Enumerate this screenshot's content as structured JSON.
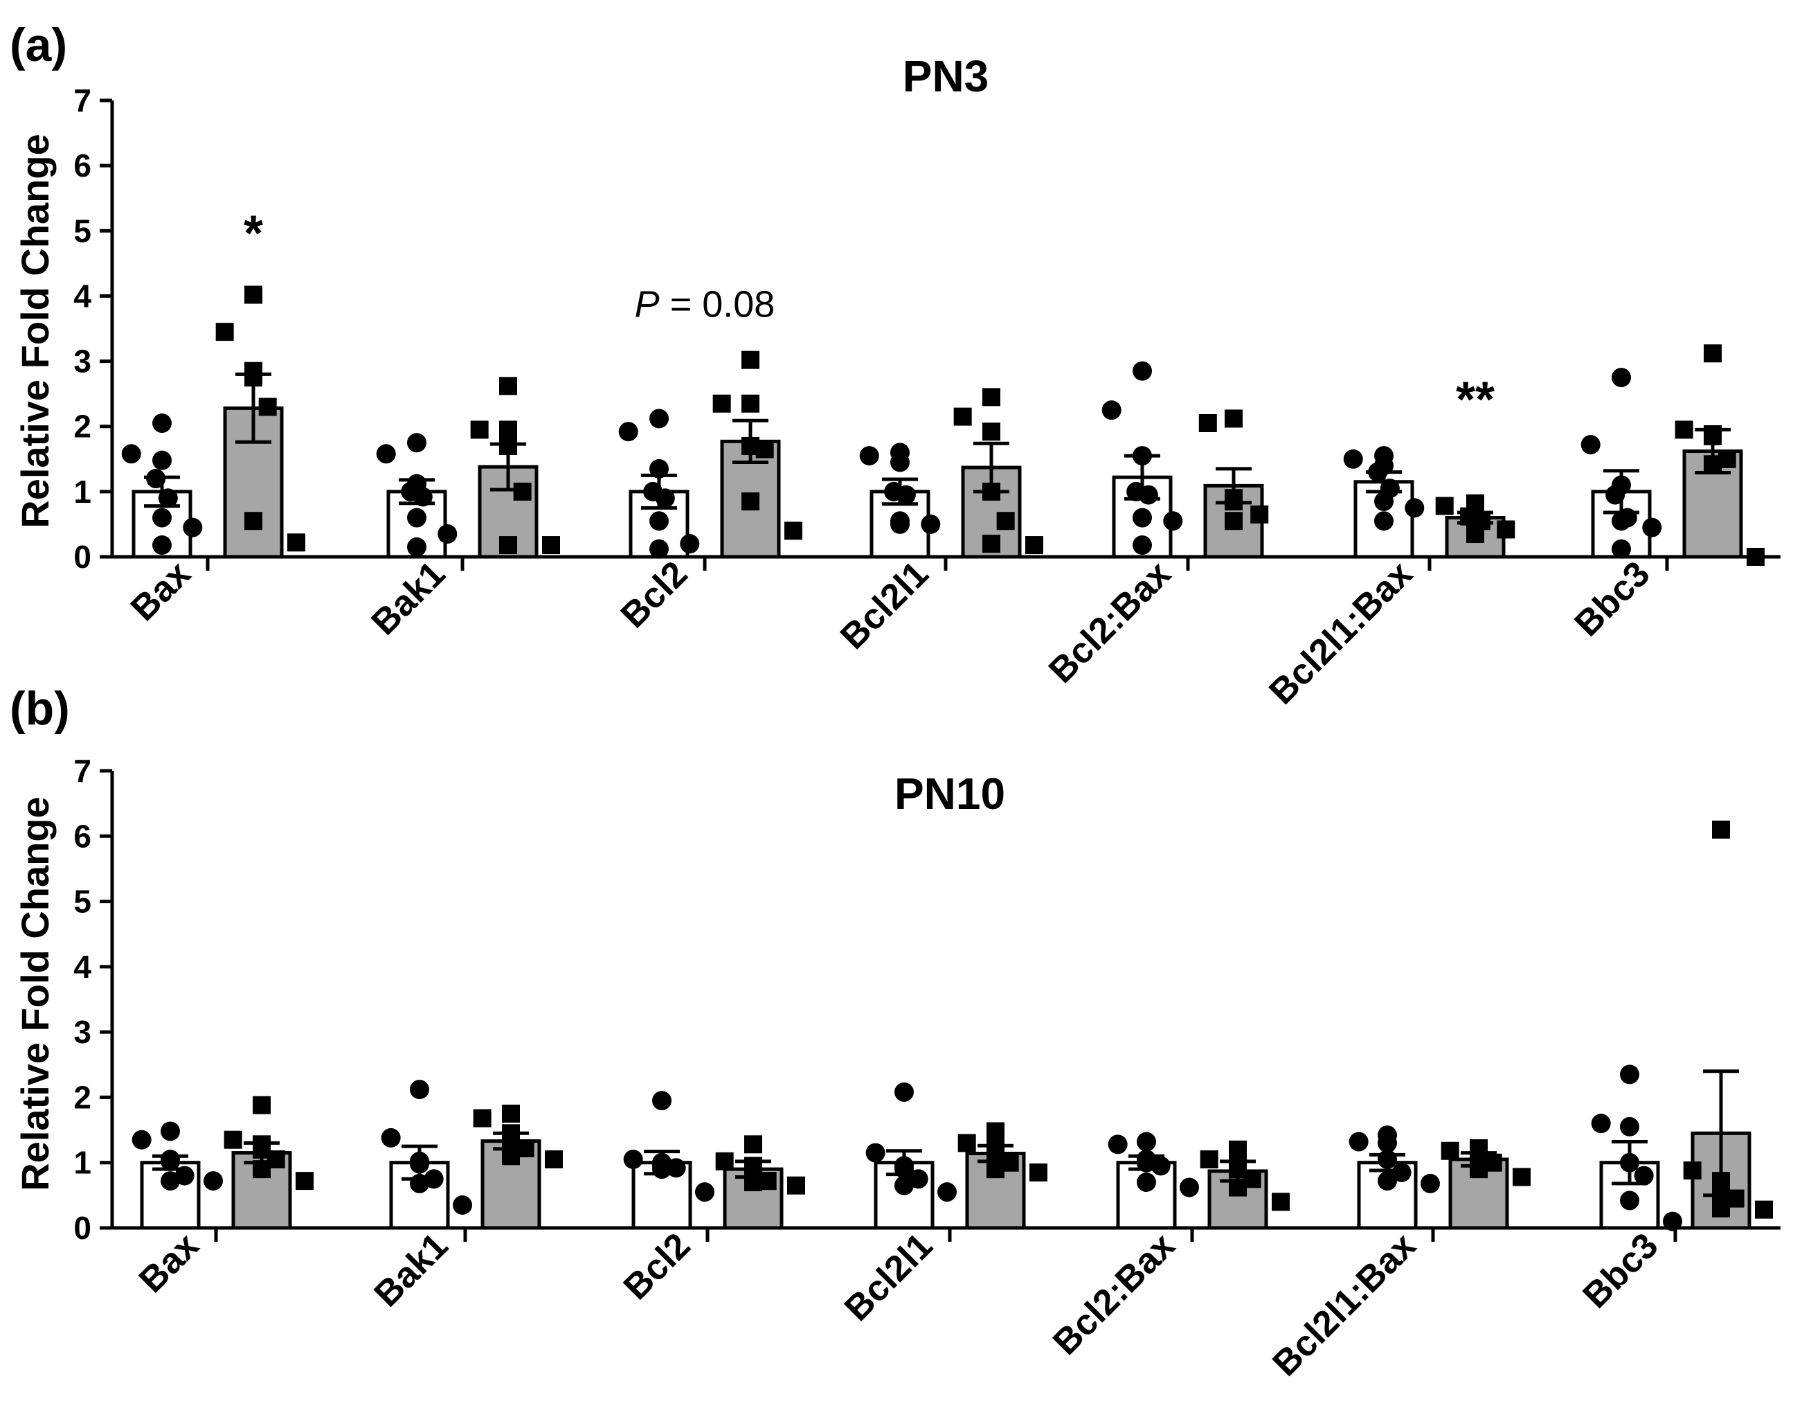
{
  "chart_data": [
    {
      "type": "bar",
      "panel": "(a)",
      "title": "PN3",
      "ylabel": "Relative Fold Change",
      "xlabel": "",
      "ylim": [
        0,
        7
      ],
      "yticks": [
        0,
        1,
        2,
        3,
        4,
        5,
        6,
        7
      ],
      "categories": [
        "Bax",
        "Bak1",
        "Bcl2",
        "Bcl2l1",
        "Bcl2:Bax",
        "Bcl2l1:Bax",
        "Bbc3"
      ],
      "series": [
        {
          "fill": "#ffffff",
          "marker": "circle",
          "values": [
            1.0,
            1.0,
            1.0,
            1.0,
            1.22,
            1.15,
            1.0
          ],
          "sem": [
            0.22,
            0.18,
            0.25,
            0.19,
            0.33,
            0.15,
            0.32
          ],
          "points": [
            [
              2.05,
              1.58,
              1.48,
              1.2,
              0.9,
              0.6,
              0.45,
              0.18
            ],
            [
              1.75,
              1.58,
              1.12,
              1.0,
              0.92,
              0.6,
              0.35,
              0.15
            ],
            [
              2.12,
              1.92,
              1.35,
              1.0,
              0.9,
              0.55,
              0.2,
              0.12
            ],
            [
              1.6,
              1.55,
              1.45,
              1.0,
              0.95,
              0.55,
              0.5,
              0.5
            ],
            [
              2.85,
              2.25,
              1.55,
              1.0,
              0.95,
              0.6,
              0.55,
              0.18
            ],
            [
              1.55,
              1.5,
              1.4,
              1.3,
              1.05,
              0.85,
              0.75,
              0.55
            ],
            [
              2.75,
              1.72,
              1.1,
              0.95,
              0.6,
              0.55,
              0.45,
              0.12
            ]
          ]
        },
        {
          "fill": "#a6a6a6",
          "marker": "square",
          "values": [
            2.28,
            1.38,
            1.77,
            1.37,
            1.09,
            0.6,
            1.62
          ],
          "sem": [
            0.52,
            0.35,
            0.32,
            0.37,
            0.26,
            0.08,
            0.33
          ],
          "points": [
            [
              4.02,
              3.45,
              2.85,
              2.75,
              2.3,
              0.55,
              0.22
            ],
            [
              2.62,
              1.95,
              1.95,
              1.7,
              1.0,
              0.18,
              0.18
            ],
            [
              3.02,
              2.35,
              2.35,
              1.7,
              1.65,
              0.85,
              0.4
            ],
            [
              2.45,
              2.15,
              1.92,
              1.0,
              0.55,
              0.2,
              0.18
            ],
            [
              2.12,
              2.05,
              0.9,
              0.85,
              0.65,
              0.55
            ],
            [
              0.82,
              0.78,
              0.72,
              0.62,
              0.55,
              0.45,
              0.42,
              0.35
            ],
            [
              3.12,
              1.95,
              1.88,
              1.85,
              1.5,
              1.42,
              0.0
            ]
          ]
        }
      ],
      "annotations": [
        {
          "text": "*",
          "category": "Bax",
          "series": 1,
          "y": 5.0
        },
        {
          "text": "P",
          "after": " = 0.08",
          "category": "Bcl2",
          "y": 3.68
        },
        {
          "text": "**",
          "category": "Bcl2l1:Bax",
          "series": 1,
          "y": 2.45
        }
      ]
    },
    {
      "type": "bar",
      "panel": "(b)",
      "title": "PN10",
      "ylabel": "Relative Fold Change",
      "xlabel": "",
      "ylim": [
        0,
        7
      ],
      "yticks": [
        0,
        1,
        2,
        3,
        4,
        5,
        6,
        7
      ],
      "categories": [
        "Bax",
        "Bak1",
        "Bcl2",
        "Bcl2l1",
        "Bcl2:Bax",
        "Bcl2l1:Bax",
        "Bbc3"
      ],
      "series": [
        {
          "fill": "#ffffff",
          "marker": "circle",
          "values": [
            1.0,
            1.0,
            1.0,
            1.0,
            1.0,
            1.0,
            1.0
          ],
          "sem": [
            0.1,
            0.25,
            0.17,
            0.18,
            0.1,
            0.12,
            0.32
          ],
          "points": [
            [
              1.48,
              1.35,
              1.05,
              1.02,
              0.8,
              0.72,
              0.72
            ],
            [
              2.12,
              1.38,
              1.02,
              0.98,
              0.75,
              0.68,
              0.35
            ],
            [
              1.95,
              1.05,
              1.0,
              0.95,
              0.92,
              0.9,
              0.55
            ],
            [
              2.08,
              1.15,
              0.95,
              0.9,
              0.75,
              0.65,
              0.55
            ],
            [
              1.32,
              1.28,
              1.05,
              1.0,
              0.95,
              0.7,
              0.62
            ],
            [
              1.42,
              1.32,
              1.3,
              1.05,
              0.85,
              0.72,
              0.68
            ],
            [
              2.35,
              1.6,
              1.55,
              1.0,
              0.8,
              0.42,
              0.1
            ]
          ]
        },
        {
          "fill": "#a6a6a6",
          "marker": "square",
          "values": [
            1.15,
            1.33,
            0.9,
            1.14,
            0.87,
            1.05,
            1.45
          ],
          "sem": [
            0.15,
            0.12,
            0.12,
            0.12,
            0.15,
            0.1,
            0.95
          ],
          "points": [
            [
              1.88,
              1.35,
              1.28,
              1.2,
              1.05,
              0.9,
              0.72
            ],
            [
              1.75,
              1.68,
              1.45,
              1.35,
              1.22,
              1.1,
              1.05
            ],
            [
              1.28,
              1.02,
              0.95,
              0.82,
              0.72,
              0.7,
              0.65
            ],
            [
              1.48,
              1.3,
              1.25,
              1.15,
              1.0,
              0.9,
              0.85
            ],
            [
              1.2,
              1.05,
              0.95,
              0.9,
              0.75,
              0.62,
              0.4
            ],
            [
              1.22,
              1.18,
              1.12,
              1.05,
              1.0,
              0.9,
              0.78
            ],
            [
              6.1,
              0.88,
              0.72,
              0.55,
              0.45,
              0.3,
              0.28
            ]
          ]
        }
      ],
      "annotations": []
    }
  ]
}
